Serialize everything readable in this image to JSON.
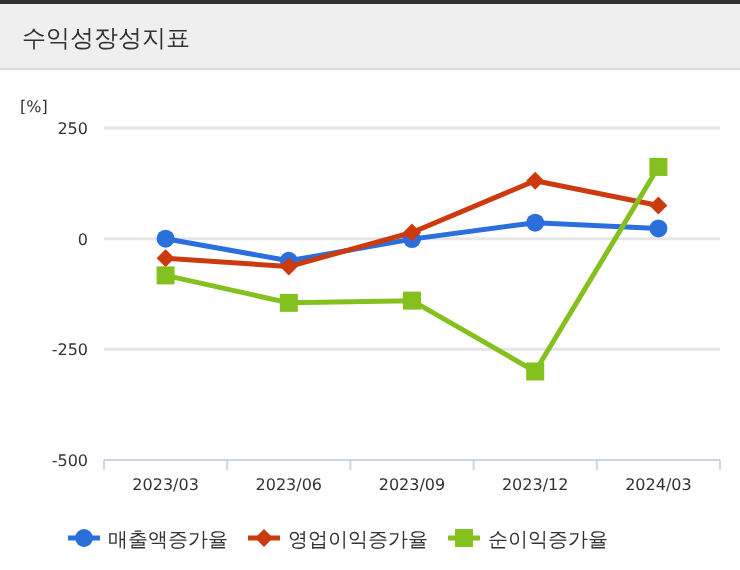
{
  "chart_data": {
    "type": "line",
    "title": "수익성장성지표",
    "ylabel": "[%]",
    "categories": [
      "2023/03",
      "2023/06",
      "2023/09",
      "2023/12",
      "2024/03"
    ],
    "series": [
      {
        "name": "매출액증가율",
        "color": "#2a6fdb",
        "marker": "circle",
        "values": [
          0,
          -50,
          -1,
          36,
          23
        ]
      },
      {
        "name": "영업이익증가율",
        "color": "#cc3a10",
        "marker": "diamond",
        "values": [
          -44,
          -63,
          14,
          131,
          75
        ]
      },
      {
        "name": "순이익증가율",
        "color": "#84c11f",
        "marker": "square",
        "values": [
          -83,
          -145,
          -140,
          -300,
          162
        ]
      }
    ],
    "ylim": [
      -500,
      250
    ],
    "yticks": [
      -500,
      -250,
      0,
      250
    ],
    "grid": "y",
    "legend": "bottom"
  }
}
